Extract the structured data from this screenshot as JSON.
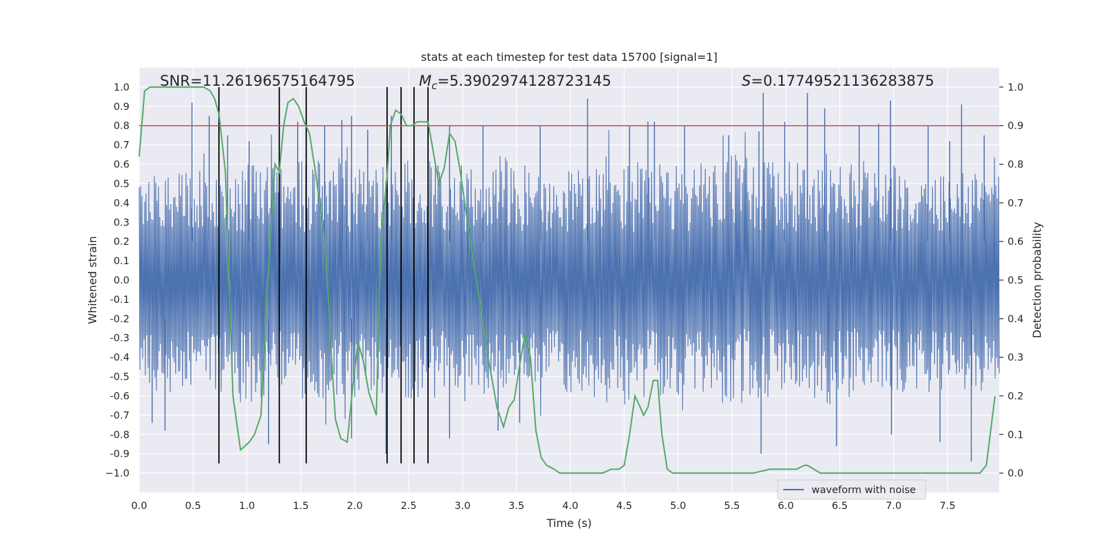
{
  "chart_data": {
    "type": "line",
    "title": "stats at each timestep for test data 15700 [signal=1]",
    "xlabel": "Time (s)",
    "ylabel": "Whitened strain",
    "ylabel_right": "Detection probability",
    "xlim": [
      0.0,
      7.98
    ],
    "ylim": [
      -1.1,
      1.1
    ],
    "ylim_right": [
      -0.05,
      1.05
    ],
    "x_ticks": [
      0.0,
      0.5,
      1.0,
      1.5,
      2.0,
      2.5,
      3.0,
      3.5,
      4.0,
      4.5,
      5.0,
      5.5,
      6.0,
      6.5,
      7.0,
      7.5
    ],
    "x_tick_labels": [
      "0.0",
      "0.5",
      "1.0",
      "1.5",
      "2.0",
      "2.5",
      "3.0",
      "3.5",
      "4.0",
      "4.5",
      "5.0",
      "5.5",
      "6.0",
      "6.5",
      "7.0",
      "7.5"
    ],
    "y_ticks": [
      1.0,
      0.9,
      0.8,
      0.7,
      0.6,
      0.5,
      0.4,
      0.3,
      0.2,
      0.1,
      0.0,
      -0.1,
      -0.2,
      -0.3,
      -0.4,
      -0.5,
      -0.6,
      -0.7,
      -0.8,
      -0.9,
      -1.0
    ],
    "y_tick_labels": [
      "1.0",
      "0.9",
      "0.8",
      "0.7",
      "0.6",
      "0.5",
      "0.4",
      "0.3",
      "0.2",
      "0.1",
      "0.0",
      "-0.1",
      "-0.2",
      "-0.3",
      "-0.4",
      "-0.5",
      "-0.6",
      "-0.7",
      "-0.8",
      "-0.9",
      "−1.0"
    ],
    "y_right_ticks": [
      1.0,
      0.9,
      0.8,
      0.7,
      0.6,
      0.5,
      0.4,
      0.3,
      0.2,
      0.1,
      0.0
    ],
    "y_right_tick_labels": [
      "1.0",
      "0.9",
      "0.8",
      "0.7",
      "0.6",
      "0.5",
      "0.4",
      "0.3",
      "0.2",
      "0.1",
      "0.0"
    ],
    "grid": true,
    "legend": {
      "placement": "lower-right",
      "entries": [
        "waveform with noise"
      ]
    },
    "annotations": {
      "snr": "SNR=11.26196575164795",
      "mc_symbol": "M",
      "mc_sub": "c",
      "mc_value": "=5.3902974128723145",
      "s_symbol": "S",
      "s_value": "=0.17749521136283875"
    },
    "threshold": {
      "axis": "right",
      "value": 0.9,
      "color": "#c44e52"
    },
    "vertical_lines": {
      "x": [
        0.74,
        1.3,
        1.55,
        2.3,
        2.43,
        2.55,
        2.68
      ],
      "ymin": -0.95,
      "ymax": 1.0,
      "color": "#000000"
    },
    "waveform": {
      "name": "waveform with noise",
      "color": "#4c72b0",
      "envelope_upper": [
        0.55,
        0.5,
        0.55,
        0.5,
        0.6,
        0.55,
        0.6,
        0.6,
        0.55,
        0.55,
        0.6,
        0.55,
        0.55,
        0.6,
        0.55,
        0.5,
        0.55,
        0.6,
        0.6,
        0.55,
        0.55,
        0.6,
        0.6,
        0.6,
        0.55,
        0.55,
        0.6,
        0.55,
        0.55,
        0.55,
        0.55,
        0.5
      ],
      "envelope_lower": [
        -0.5,
        -0.55,
        -0.5,
        -0.55,
        -0.6,
        -0.55,
        -0.6,
        -0.55,
        -0.55,
        -0.55,
        -0.6,
        -0.55,
        -0.55,
        -0.55,
        -0.5,
        -0.55,
        -0.55,
        -0.6,
        -0.6,
        -0.55,
        -0.55,
        -0.6,
        -0.6,
        -0.55,
        -0.55,
        -0.6,
        -0.55,
        -0.55,
        -0.55,
        -0.55,
        -0.55,
        -0.5
      ],
      "spikes_up": [
        [
          0.49,
          0.92
        ],
        [
          0.65,
          0.85
        ],
        [
          0.82,
          0.75
        ],
        [
          1.02,
          0.72
        ],
        [
          1.47,
          0.82
        ],
        [
          1.72,
          0.8
        ],
        [
          1.88,
          0.83
        ],
        [
          1.97,
          0.85
        ],
        [
          2.12,
          0.78
        ],
        [
          2.34,
          0.85
        ],
        [
          2.88,
          0.8
        ],
        [
          3.19,
          0.8
        ],
        [
          3.72,
          0.8
        ],
        [
          4.16,
          0.94
        ],
        [
          4.55,
          0.8
        ],
        [
          4.72,
          0.82
        ],
        [
          4.78,
          0.82
        ],
        [
          5.06,
          0.8
        ],
        [
          5.47,
          0.75
        ],
        [
          5.75,
          0.77
        ],
        [
          5.79,
          0.97
        ],
        [
          5.99,
          0.82
        ],
        [
          6.2,
          0.97
        ],
        [
          6.36,
          0.89
        ],
        [
          6.68,
          0.8
        ],
        [
          6.86,
          0.81
        ],
        [
          6.97,
          0.93
        ],
        [
          7.32,
          0.8
        ],
        [
          7.52,
          0.72
        ],
        [
          7.63,
          0.91
        ],
        [
          7.84,
          0.75
        ]
      ],
      "spikes_down": [
        [
          0.12,
          -0.74
        ],
        [
          0.24,
          -0.78
        ],
        [
          1.2,
          -0.85
        ],
        [
          1.97,
          -0.82
        ],
        [
          2.29,
          -0.9
        ],
        [
          2.88,
          -0.82
        ],
        [
          3.33,
          -0.78
        ],
        [
          3.53,
          -0.74
        ],
        [
          5.77,
          -0.9
        ],
        [
          6.47,
          -0.86
        ],
        [
          6.98,
          -0.8
        ],
        [
          7.43,
          -0.84
        ],
        [
          7.72,
          -0.94
        ]
      ]
    },
    "detection_probability": {
      "name": "detection probability",
      "color": "#55a868",
      "x": [
        0.0,
        0.05,
        0.1,
        0.2,
        0.3,
        0.4,
        0.5,
        0.55,
        0.6,
        0.66,
        0.7,
        0.74,
        0.8,
        0.87,
        0.94,
        1.02,
        1.07,
        1.13,
        1.17,
        1.22,
        1.26,
        1.3,
        1.34,
        1.38,
        1.43,
        1.48,
        1.53,
        1.58,
        1.63,
        1.68,
        1.73,
        1.78,
        1.82,
        1.87,
        1.93,
        1.98,
        2.03,
        2.08,
        2.13,
        2.2,
        2.24,
        2.3,
        2.33,
        2.38,
        2.43,
        2.48,
        2.53,
        2.58,
        2.63,
        2.68,
        2.73,
        2.78,
        2.83,
        2.88,
        2.93,
        2.98,
        3.03,
        3.1,
        3.18,
        3.25,
        3.32,
        3.38,
        3.43,
        3.48,
        3.53,
        3.58,
        3.63,
        3.68,
        3.73,
        3.78,
        3.85,
        3.9,
        4.0,
        4.1,
        4.2,
        4.3,
        4.38,
        4.45,
        4.5,
        4.55,
        4.6,
        4.65,
        4.68,
        4.72,
        4.77,
        4.81,
        4.85,
        4.9,
        4.95,
        5.0,
        5.1,
        5.3,
        5.5,
        5.7,
        5.85,
        5.95,
        6.02,
        6.1,
        6.17,
        6.2,
        6.26,
        6.32,
        6.4,
        6.6,
        6.8,
        7.0,
        7.1,
        7.2,
        7.4,
        7.6,
        7.7,
        7.8,
        7.86,
        7.94
      ],
      "y": [
        0.82,
        0.99,
        1.0,
        1.0,
        1.0,
        1.0,
        1.0,
        1.0,
        1.0,
        0.99,
        0.97,
        0.93,
        0.78,
        0.2,
        0.06,
        0.08,
        0.1,
        0.15,
        0.38,
        0.62,
        0.8,
        0.78,
        0.9,
        0.96,
        0.97,
        0.95,
        0.91,
        0.88,
        0.79,
        0.69,
        0.58,
        0.32,
        0.14,
        0.09,
        0.08,
        0.22,
        0.34,
        0.29,
        0.21,
        0.15,
        0.6,
        0.77,
        0.9,
        0.94,
        0.93,
        0.9,
        0.9,
        0.91,
        0.91,
        0.91,
        0.83,
        0.75,
        0.79,
        0.88,
        0.86,
        0.78,
        0.68,
        0.55,
        0.41,
        0.28,
        0.17,
        0.12,
        0.17,
        0.19,
        0.28,
        0.36,
        0.3,
        0.11,
        0.04,
        0.02,
        0.01,
        0.0,
        0.0,
        0.0,
        0.0,
        0.0,
        0.01,
        0.01,
        0.02,
        0.1,
        0.2,
        0.17,
        0.15,
        0.17,
        0.24,
        0.24,
        0.1,
        0.01,
        0.0,
        0.0,
        0.0,
        0.0,
        0.0,
        0.0,
        0.01,
        0.01,
        0.01,
        0.01,
        0.02,
        0.02,
        0.01,
        0.0,
        0.0,
        0.0,
        0.0,
        0.0,
        0.0,
        0.0,
        0.0,
        0.0,
        0.0,
        0.0,
        0.02,
        0.2
      ]
    }
  }
}
